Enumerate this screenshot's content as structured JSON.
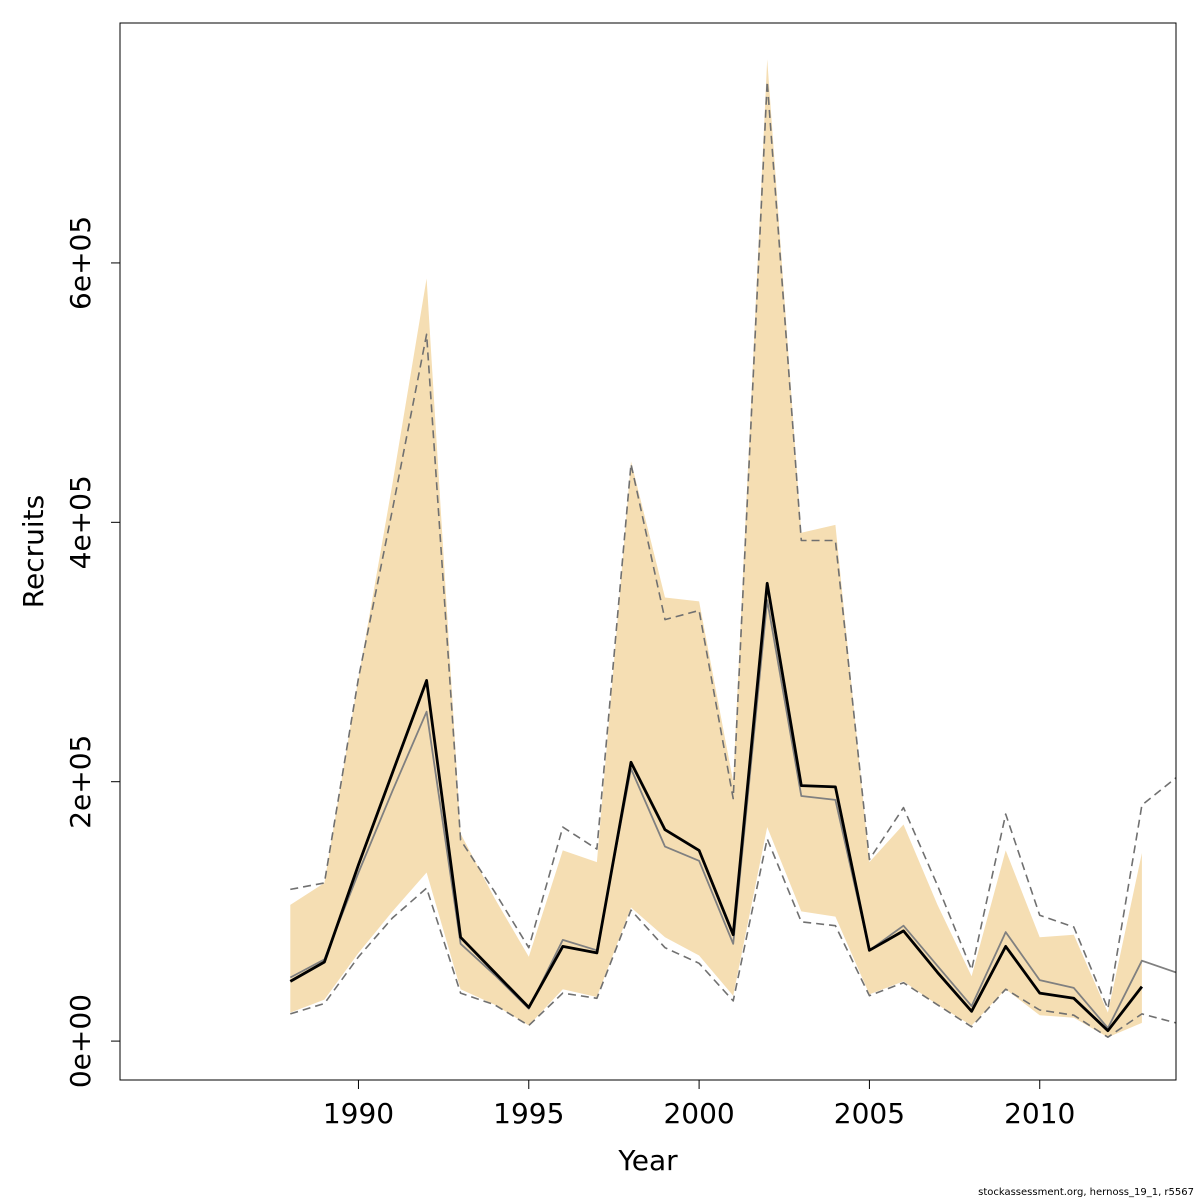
{
  "chart_data": {
    "type": "line",
    "title": "",
    "xlabel": "Year",
    "ylabel": "Recruits",
    "xlim": [
      1983,
      2014
    ],
    "ylim": [
      -30000,
      785000
    ],
    "x_ticks": [
      1990,
      1995,
      2000,
      2005,
      2010
    ],
    "x_tick_labels": [
      "1990",
      "1995",
      "2000",
      "2005",
      "2010"
    ],
    "y_ticks": [
      0,
      200000,
      400000,
      600000
    ],
    "y_tick_labels": [
      "0e+00",
      "2e+05",
      "4e+05",
      "6e+05"
    ],
    "grid": false,
    "legend": "none",
    "colors": {
      "band": "#f5deb3",
      "main_line": "#000000",
      "secondary_line": "#808080",
      "interval_line": "#707070"
    },
    "band": {
      "x": [
        1988,
        1989,
        1990,
        1991,
        1992,
        1993,
        1994,
        1995,
        1996,
        1997,
        1998,
        1999,
        2000,
        2001,
        2002,
        2003,
        2004,
        2005,
        2006,
        2007,
        2008,
        2009,
        2010,
        2011,
        2012,
        2013
      ],
      "upper": [
        105000,
        122000,
        280000,
        430000,
        588000,
        160000,
        110000,
        65000,
        147000,
        138000,
        447000,
        342000,
        339000,
        200000,
        757000,
        392000,
        398000,
        138000,
        167000,
        105000,
        50000,
        147000,
        80000,
        82000,
        22000,
        145000
      ],
      "lower": [
        22000,
        32000,
        68000,
        100000,
        130000,
        40000,
        28000,
        12000,
        40000,
        34000,
        103000,
        80000,
        66000,
        35000,
        165000,
        100000,
        96000,
        36000,
        46000,
        28000,
        12000,
        40000,
        20000,
        18000,
        3000,
        14000
      ]
    },
    "series": [
      {
        "x": [
          1988,
          1989,
          1990,
          1991,
          1992,
          1993,
          1994,
          1995,
          1996,
          1997,
          1998,
          1999,
          2000,
          2001,
          2002,
          2003,
          2004,
          2005,
          2006,
          2007,
          2008,
          2009,
          2010,
          2011,
          2012,
          2013
        ],
        "values": [
          46000,
          61000,
          136000,
          207000,
          278000,
          80000,
          53000,
          26000,
          73000,
          68000,
          215000,
          163000,
          147000,
          82000,
          353000,
          197000,
          196000,
          70000,
          85000,
          53000,
          23000,
          73000,
          37000,
          33000,
          8000,
          42000
        ]
      },
      {
        "x": [
          1988,
          1989,
          1990,
          1991,
          1992,
          1993,
          1994,
          1995,
          1996,
          1997,
          1998,
          1999,
          2000,
          2001,
          2002,
          2003,
          2004,
          2005,
          2006,
          2007,
          2008,
          2009,
          2010,
          2011,
          2012,
          2013,
          2014
        ],
        "values": [
          49000,
          63000,
          130000,
          193000,
          254000,
          75000,
          51000,
          25000,
          78000,
          70000,
          210000,
          150000,
          139000,
          75000,
          340000,
          189000,
          186000,
          70000,
          89000,
          58000,
          27000,
          84000,
          47000,
          41000,
          10000,
          62000,
          53000
        ]
      },
      {
        "x": [
          1988,
          1989,
          1990,
          1991,
          1992,
          1993,
          1994,
          1995,
          1996,
          1997,
          1998,
          1999,
          2000,
          2001,
          2002,
          2003,
          2004,
          2005,
          2006,
          2007,
          2008,
          2009,
          2010,
          2011,
          2012,
          2013,
          2014
        ],
        "values": [
          117000,
          122000,
          280000,
          410000,
          545000,
          155000,
          115000,
          72000,
          165000,
          148000,
          445000,
          325000,
          332000,
          187000,
          740000,
          386000,
          386000,
          140000,
          180000,
          120000,
          55000,
          175000,
          97000,
          88000,
          25000,
          182000,
          203000
        ]
      },
      {
        "x": [
          1988,
          1989,
          1990,
          1991,
          1992,
          1993,
          1994,
          1995,
          1996,
          1997,
          1998,
          1999,
          2000,
          2001,
          2002,
          2003,
          2004,
          2005,
          2006,
          2007,
          2008,
          2009,
          2010,
          2011,
          2012,
          2013,
          2014
        ],
        "values": [
          21000,
          29000,
          65000,
          95000,
          118000,
          37000,
          28000,
          12000,
          37000,
          33000,
          101000,
          72000,
          60000,
          31000,
          156000,
          92000,
          89000,
          35000,
          45000,
          28000,
          11000,
          40000,
          24000,
          20000,
          3000,
          21000,
          14000
        ]
      }
    ]
  },
  "footer": "stockassessment.org, hernoss_19_1, r5567"
}
